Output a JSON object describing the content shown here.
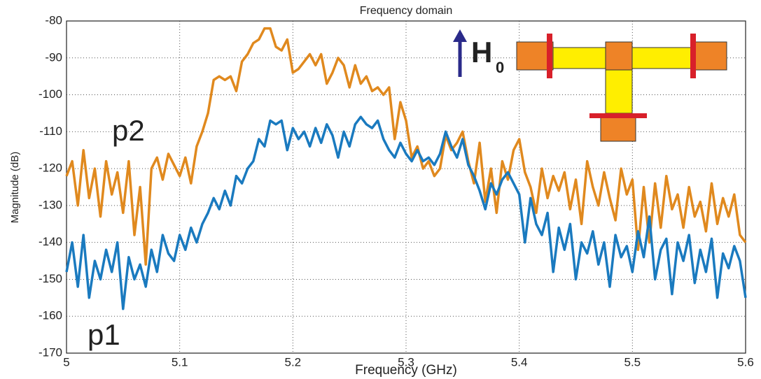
{
  "chart_data": {
    "type": "line",
    "title": "Frequency domain",
    "xlabel": "Frequency (GHz)",
    "ylabel": "Magnitude (dB)",
    "x": [
      5,
      5.005,
      5.01,
      5.015,
      5.02,
      5.025,
      5.03,
      5.035,
      5.04,
      5.045,
      5.05,
      5.055,
      5.06,
      5.065,
      5.07,
      5.075,
      5.08,
      5.085,
      5.09,
      5.095,
      5.1,
      5.105,
      5.11,
      5.115,
      5.12,
      5.125,
      5.13,
      5.135,
      5.14,
      5.145,
      5.15,
      5.155,
      5.16,
      5.165,
      5.17,
      5.175,
      5.18,
      5.185,
      5.19,
      5.195,
      5.2,
      5.205,
      5.21,
      5.215,
      5.22,
      5.225,
      5.23,
      5.235,
      5.24,
      5.245,
      5.25,
      5.255,
      5.26,
      5.265,
      5.27,
      5.275,
      5.28,
      5.285,
      5.29,
      5.295,
      5.3,
      5.305,
      5.31,
      5.315,
      5.32,
      5.325,
      5.33,
      5.335,
      5.34,
      5.345,
      5.35,
      5.355,
      5.36,
      5.365,
      5.37,
      5.375,
      5.38,
      5.385,
      5.39,
      5.395,
      5.4,
      5.405,
      5.41,
      5.415,
      5.42,
      5.425,
      5.43,
      5.435,
      5.44,
      5.445,
      5.45,
      5.455,
      5.46,
      5.465,
      5.47,
      5.475,
      5.48,
      5.485,
      5.49,
      5.495,
      5.5,
      5.505,
      5.51,
      5.515,
      5.52,
      5.525,
      5.53,
      5.535,
      5.54,
      5.545,
      5.55,
      5.555,
      5.56,
      5.565,
      5.57,
      5.575,
      5.58,
      5.585,
      5.59,
      5.595,
      5.6
    ],
    "series": [
      {
        "name": "p2",
        "color": "#e0891e",
        "values": [
          -122,
          -118,
          -130,
          -115,
          -128,
          -120,
          -133,
          -118,
          -127,
          -121,
          -132,
          -118,
          -138,
          -125,
          -146,
          -120,
          -117,
          -123,
          -116,
          -119,
          -122,
          -117,
          -124,
          -114,
          -110,
          -105,
          -96,
          -95,
          -96,
          -95,
          -99,
          -91,
          -89,
          -86,
          -85,
          -82,
          -82,
          -87,
          -88,
          -85,
          -94,
          -93,
          -91,
          -89,
          -92,
          -89,
          -97,
          -94,
          -90,
          -92,
          -98,
          -92,
          -97,
          -95,
          -99,
          -98,
          -100,
          -98,
          -112,
          -102,
          -107,
          -117,
          -114,
          -120,
          -118,
          -122,
          -120,
          -111,
          -115,
          -113,
          -110,
          -118,
          -124,
          -113,
          -129,
          -120,
          -132,
          -118,
          -123,
          -115,
          -112,
          -121,
          -125,
          -132,
          -120,
          -128,
          -122,
          -126,
          -121,
          -131,
          -123,
          -135,
          -118,
          -125,
          -130,
          -121,
          -128,
          -134,
          -120,
          -127,
          -123,
          -142,
          -125,
          -140,
          -124,
          -136,
          -122,
          -131,
          -127,
          -136,
          -125,
          -133,
          -129,
          -137,
          -124,
          -135,
          -128,
          -133,
          -127,
          -138,
          -140
        ]
      },
      {
        "name": "p1",
        "color": "#1a7abf",
        "values": [
          -148,
          -140,
          -152,
          -138,
          -155,
          -145,
          -150,
          -142,
          -148,
          -140,
          -158,
          -144,
          -150,
          -146,
          -152,
          -142,
          -148,
          -138,
          -143,
          -145,
          -138,
          -142,
          -136,
          -140,
          -135,
          -132,
          -128,
          -131,
          -126,
          -130,
          -122,
          -124,
          -120,
          -118,
          -112,
          -114,
          -107,
          -108,
          -107,
          -115,
          -109,
          -112,
          -110,
          -114,
          -109,
          -113,
          -108,
          -111,
          -117,
          -110,
          -114,
          -108,
          -106,
          -108,
          -109,
          -107,
          -112,
          -115,
          -117,
          -113,
          -116,
          -118,
          -115,
          -118,
          -117,
          -119,
          -116,
          -110,
          -114,
          -117,
          -112,
          -119,
          -122,
          -126,
          -131,
          -124,
          -127,
          -123,
          -121,
          -124,
          -127,
          -140,
          -128,
          -135,
          -138,
          -132,
          -148,
          -136,
          -142,
          -135,
          -150,
          -140,
          -143,
          -137,
          -146,
          -140,
          -152,
          -138,
          -144,
          -141,
          -148,
          -137,
          -144,
          -133,
          -150,
          -142,
          -139,
          -154,
          -140,
          -145,
          -138,
          -151,
          -142,
          -148,
          -139,
          -155,
          -143,
          -147,
          -141,
          -145,
          -155
        ]
      }
    ],
    "xlim": [
      5,
      5.6
    ],
    "xticks": [
      5,
      5.1,
      5.2,
      5.3,
      5.4,
      5.5,
      5.6
    ],
    "ylim": [
      -170,
      -80
    ],
    "yticks": [
      -170,
      -160,
      -150,
      -140,
      -130,
      -120,
      -110,
      -100,
      -90,
      -80
    ],
    "grid": true,
    "inset": {
      "field_label": "H",
      "field_subscript": "0"
    }
  }
}
